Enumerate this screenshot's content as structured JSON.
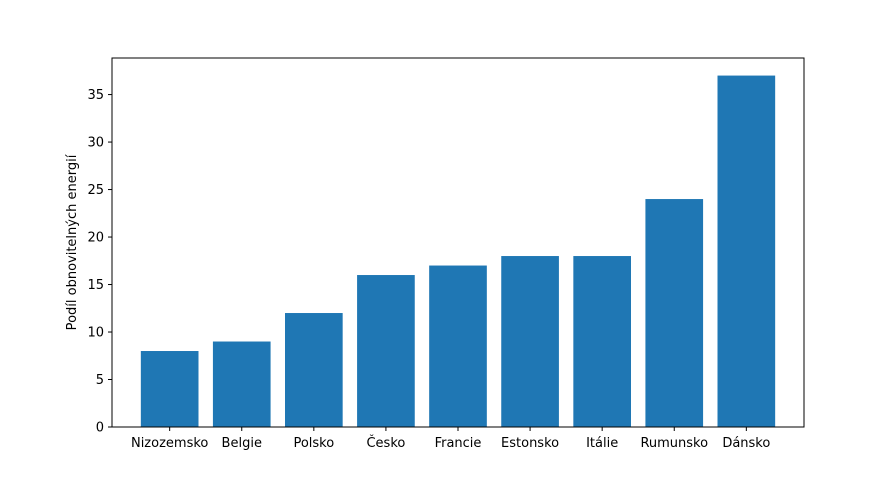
{
  "chart_data": {
    "type": "bar",
    "categories": [
      "Nizozemsko",
      "Belgie",
      "Polsko",
      "Česko",
      "Francie",
      "Estonsko",
      "Itálie",
      "Rumunsko",
      "Dánsko"
    ],
    "values": [
      8,
      9,
      12,
      16,
      17,
      18,
      18,
      24,
      37
    ],
    "title": "",
    "xlabel": "",
    "ylabel": "Podíl obnovitelných energií",
    "ylim": [
      0,
      38.85
    ],
    "yticks": [
      0,
      5,
      10,
      15,
      20,
      25,
      30,
      35
    ],
    "grid": false,
    "bar_color": "#1f77b4"
  }
}
